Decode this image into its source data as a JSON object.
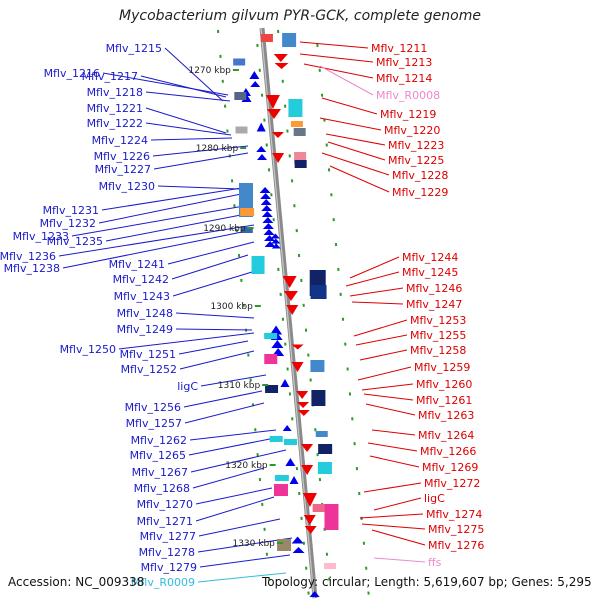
{
  "title": "Mycobacterium gilvum PYR-GCK, complete genome",
  "footer": {
    "accession": "Accession: NC_009338",
    "topology": "Topology: circular; Length: 5,619,607 bp; Genes: 5,295"
  },
  "scale_labels": [
    "1270 kbp",
    "1280 kbp",
    "1290 kbp",
    "1300 kbp",
    "1310 kbp",
    "1320 kbp",
    "1330 kbp"
  ],
  "colors": {
    "forward_label": "#1a1acc",
    "reverse_label": "#dd0000",
    "rna_forward_label": "#33bbdd",
    "rna_reverse_label": "#ee88cc",
    "forward_arrow": "#0000ee",
    "reverse_arrow": "#ee0000",
    "backbone": "#888888"
  },
  "left_labels": [
    {
      "text": "Mflv_1215",
      "kind": "gene"
    },
    {
      "text": "Mflv_1216",
      "kind": "gene"
    },
    {
      "text": "Mflv_1217",
      "kind": "gene"
    },
    {
      "text": "Mflv_1218",
      "kind": "gene"
    },
    {
      "text": "Mflv_1221",
      "kind": "gene"
    },
    {
      "text": "Mflv_1222",
      "kind": "gene"
    },
    {
      "text": "Mflv_1224",
      "kind": "gene"
    },
    {
      "text": "Mflv_1226",
      "kind": "gene"
    },
    {
      "text": "Mflv_1227",
      "kind": "gene"
    },
    {
      "text": "Mflv_1230",
      "kind": "gene"
    },
    {
      "text": "Mflv_1231",
      "kind": "gene"
    },
    {
      "text": "Mflv_1232",
      "kind": "gene"
    },
    {
      "text": "Mflv_1233",
      "kind": "gene"
    },
    {
      "text": "Mflv_1235",
      "kind": "gene"
    },
    {
      "text": "Mflv_1236",
      "kind": "gene"
    },
    {
      "text": "Mflv_1238",
      "kind": "gene"
    },
    {
      "text": "Mflv_1241",
      "kind": "gene"
    },
    {
      "text": "Mflv_1242",
      "kind": "gene"
    },
    {
      "text": "Mflv_1243",
      "kind": "gene"
    },
    {
      "text": "Mflv_1248",
      "kind": "gene"
    },
    {
      "text": "Mflv_1249",
      "kind": "gene"
    },
    {
      "text": "Mflv_1250",
      "kind": "gene"
    },
    {
      "text": "Mflv_1251",
      "kind": "gene"
    },
    {
      "text": "Mflv_1252",
      "kind": "gene"
    },
    {
      "text": "ligC",
      "kind": "gene"
    },
    {
      "text": "Mflv_1256",
      "kind": "gene"
    },
    {
      "text": "Mflv_1257",
      "kind": "gene"
    },
    {
      "text": "Mflv_1262",
      "kind": "gene"
    },
    {
      "text": "Mflv_1265",
      "kind": "gene"
    },
    {
      "text": "Mflv_1267",
      "kind": "gene"
    },
    {
      "text": "Mflv_1268",
      "kind": "gene"
    },
    {
      "text": "Mflv_1270",
      "kind": "gene"
    },
    {
      "text": "Mflv_1271",
      "kind": "gene"
    },
    {
      "text": "Mflv_1277",
      "kind": "gene"
    },
    {
      "text": "Mflv_1278",
      "kind": "gene"
    },
    {
      "text": "Mflv_1279",
      "kind": "gene"
    },
    {
      "text": "Mflv_R0009",
      "kind": "rna"
    }
  ],
  "right_labels": [
    {
      "text": "Mflv_1211",
      "kind": "gene"
    },
    {
      "text": "Mflv_1213",
      "kind": "gene"
    },
    {
      "text": "Mflv_1214",
      "kind": "gene"
    },
    {
      "text": "Mflv_R0008",
      "kind": "rna"
    },
    {
      "text": "Mflv_1219",
      "kind": "gene"
    },
    {
      "text": "Mflv_1220",
      "kind": "gene"
    },
    {
      "text": "Mflv_1223",
      "kind": "gene"
    },
    {
      "text": "Mflv_1225",
      "kind": "gene"
    },
    {
      "text": "Mflv_1228",
      "kind": "gene"
    },
    {
      "text": "Mflv_1229",
      "kind": "gene"
    },
    {
      "text": "Mflv_1244",
      "kind": "gene"
    },
    {
      "text": "Mflv_1245",
      "kind": "gene"
    },
    {
      "text": "Mflv_1246",
      "kind": "gene"
    },
    {
      "text": "Mflv_1247",
      "kind": "gene"
    },
    {
      "text": "Mflv_1253",
      "kind": "gene"
    },
    {
      "text": "Mflv_1255",
      "kind": "gene"
    },
    {
      "text": "Mflv_1258",
      "kind": "gene"
    },
    {
      "text": "Mflv_1259",
      "kind": "gene"
    },
    {
      "text": "Mflv_1260",
      "kind": "gene"
    },
    {
      "text": "Mflv_1261",
      "kind": "gene"
    },
    {
      "text": "Mflv_1263",
      "kind": "gene"
    },
    {
      "text": "Mflv_1264",
      "kind": "gene"
    },
    {
      "text": "Mflv_1266",
      "kind": "gene"
    },
    {
      "text": "Mflv_1269",
      "kind": "gene"
    },
    {
      "text": "Mflv_1272",
      "kind": "gene"
    },
    {
      "text": "ligC",
      "kind": "gene"
    },
    {
      "text": "Mflv_1274",
      "kind": "gene"
    },
    {
      "text": "Mflv_1275",
      "kind": "gene"
    },
    {
      "text": "Mflv_1276",
      "kind": "gene"
    },
    {
      "text": "ffs",
      "kind": "rna"
    }
  ]
}
